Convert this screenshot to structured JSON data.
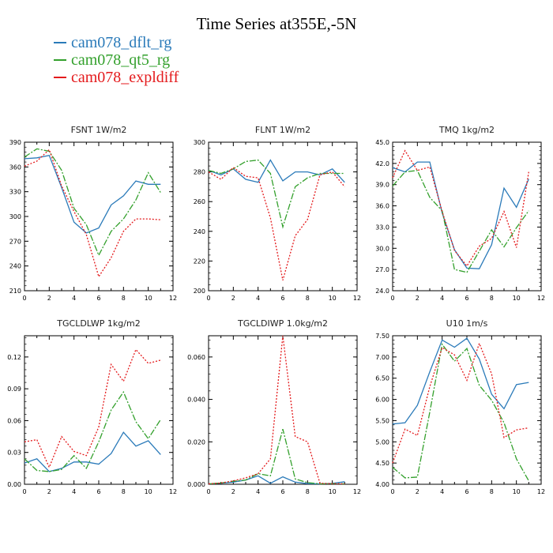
{
  "title": "Time Series at355E,-5N",
  "legend": [
    {
      "label": "cam078_dflt_rg",
      "color": "#2a7ab9"
    },
    {
      "label": "cam078_qt5_rg",
      "color": "#33a02c"
    },
    {
      "label": "cam078_expldiff",
      "color": "#e41a1c"
    }
  ],
  "chart_data": [
    {
      "type": "line",
      "title": "FSNT   1W/m2",
      "x": [
        0,
        1,
        2,
        3,
        4,
        5,
        6,
        7,
        8,
        9,
        10,
        11
      ],
      "xlim": [
        0,
        12
      ],
      "xticks": [
        "0",
        "2",
        "4",
        "6",
        "8",
        "10",
        "12"
      ],
      "ylim": [
        210,
        390
      ],
      "yticks": [
        "210",
        "240",
        "270",
        "300",
        "330",
        "360",
        "390"
      ],
      "series": [
        {
          "name": "cam078_dflt_rg",
          "values": [
            370,
            371,
            374,
            335,
            293,
            280,
            286,
            314,
            325,
            343,
            339,
            339
          ]
        },
        {
          "name": "cam078_qt5_rg",
          "values": [
            372,
            382,
            379,
            356,
            310,
            290,
            253,
            282,
            297,
            320,
            353,
            329
          ]
        },
        {
          "name": "cam078_expldiff",
          "values": [
            361,
            367,
            381,
            337,
            306,
            278,
            227,
            250,
            282,
            297,
            297,
            296
          ]
        }
      ]
    },
    {
      "type": "line",
      "title": "FLNT   1W/m2",
      "x": [
        0,
        1,
        2,
        3,
        4,
        5,
        6,
        7,
        8,
        9,
        10,
        11
      ],
      "xlim": [
        0,
        12
      ],
      "xticks": [
        "0",
        "2",
        "4",
        "6",
        "8",
        "10",
        "12"
      ],
      "ylim": [
        200,
        300
      ],
      "yticks": [
        "200",
        "220",
        "240",
        "260",
        "280",
        "300"
      ],
      "series": [
        {
          "name": "cam078_dflt_rg",
          "values": [
            281,
            278,
            282,
            275,
            273,
            288,
            274,
            280,
            280,
            278,
            282,
            273
          ]
        },
        {
          "name": "cam078_qt5_rg",
          "values": [
            281,
            279,
            282,
            287,
            288,
            279,
            243,
            270,
            276,
            279,
            279,
            279
          ]
        },
        {
          "name": "cam078_expldiff",
          "values": [
            280,
            275,
            283,
            277,
            276,
            249,
            207,
            237,
            248,
            278,
            280,
            270
          ]
        }
      ]
    },
    {
      "type": "line",
      "title": "TMQ   1kg/m2",
      "x": [
        0,
        1,
        2,
        3,
        4,
        5,
        6,
        7,
        8,
        9,
        10,
        11
      ],
      "xlim": [
        0,
        12
      ],
      "xticks": [
        "0",
        "2",
        "4",
        "6",
        "8",
        "10",
        "12"
      ],
      "ylim": [
        24.0,
        45.0
      ],
      "yticks": [
        "24.0",
        "27.0",
        "30.0",
        "33.0",
        "36.0",
        "39.0",
        "42.0",
        "45.0"
      ],
      "series": [
        {
          "name": "cam078_dflt_rg",
          "values": [
            41.4,
            40.8,
            42.2,
            42.2,
            35.0,
            29.8,
            27.2,
            27.1,
            30.5,
            38.5,
            35.8,
            39.8
          ]
        },
        {
          "name": "cam078_qt5_rg",
          "values": [
            38.8,
            40.8,
            41.0,
            37.2,
            35.3,
            27.0,
            26.6,
            29.6,
            32.6,
            30.2,
            32.9,
            35.3
          ]
        },
        {
          "name": "cam078_expldiff",
          "values": [
            40.0,
            43.8,
            41.0,
            41.5,
            35.2,
            29.7,
            27.5,
            30.3,
            31.4,
            35.2,
            30.1,
            40.8
          ]
        }
      ]
    },
    {
      "type": "line",
      "title": "TGCLDLWP   1kg/m2",
      "x": [
        0,
        1,
        2,
        3,
        4,
        5,
        6,
        7,
        8,
        9,
        10,
        11
      ],
      "xlim": [
        0,
        12
      ],
      "xticks": [
        "0",
        "2",
        "4",
        "6",
        "8",
        "10",
        "12"
      ],
      "ylim": [
        0.0,
        0.14
      ],
      "yticks": [
        "0.00",
        "0.03",
        "0.06",
        "0.09",
        "0.12"
      ],
      "series": [
        {
          "name": "cam078_dflt_rg",
          "values": [
            0.02,
            0.024,
            0.012,
            0.015,
            0.021,
            0.021,
            0.019,
            0.029,
            0.049,
            0.036,
            0.041,
            0.028
          ]
        },
        {
          "name": "cam078_qt5_rg",
          "values": [
            0.024,
            0.013,
            0.012,
            0.014,
            0.027,
            0.015,
            0.04,
            0.07,
            0.087,
            0.059,
            0.043,
            0.061
          ]
        },
        {
          "name": "cam078_expldiff",
          "values": [
            0.04,
            0.042,
            0.016,
            0.045,
            0.031,
            0.027,
            0.054,
            0.113,
            0.097,
            0.127,
            0.114,
            0.117
          ]
        }
      ]
    },
    {
      "type": "line",
      "title": "TGCLDIWP   1.0kg/m2",
      "x": [
        0,
        1,
        2,
        3,
        4,
        5,
        6,
        7,
        8,
        9,
        10,
        11
      ],
      "xlim": [
        0,
        12
      ],
      "xticks": [
        "0",
        "2",
        "4",
        "6",
        "8",
        "10",
        "12"
      ],
      "ylim": [
        0.0,
        0.07
      ],
      "yticks": [
        "0.000",
        "0.020",
        "0.040",
        "0.060"
      ],
      "series": [
        {
          "name": "cam078_dflt_rg",
          "values": [
            0.0002,
            0.0005,
            0.001,
            0.002,
            0.004,
            0.0005,
            0.0035,
            0.001,
            0.0003,
            0.0002,
            0.0004,
            0.0012
          ]
        },
        {
          "name": "cam078_qt5_rg",
          "values": [
            0.0002,
            0.0006,
            0.0014,
            0.002,
            0.005,
            0.004,
            0.026,
            0.0025,
            0.0008,
            0.0002,
            0.0003,
            0.0002
          ]
        },
        {
          "name": "cam078_expldiff",
          "values": [
            0.0002,
            0.0006,
            0.0016,
            0.003,
            0.005,
            0.012,
            0.07,
            0.0225,
            0.02,
            0.0005,
            0.0003,
            0.0002
          ]
        }
      ]
    },
    {
      "type": "line",
      "title": "U10   1m/s",
      "x": [
        0,
        1,
        2,
        3,
        4,
        5,
        6,
        7,
        8,
        9,
        10,
        11
      ],
      "xlim": [
        0,
        12
      ],
      "xticks": [
        "0",
        "2",
        "4",
        "6",
        "8",
        "10",
        "12"
      ],
      "ylim": [
        4.0,
        7.5
      ],
      "yticks": [
        "4.00",
        "4.50",
        "5.00",
        "5.50",
        "6.00",
        "6.50",
        "7.00",
        "7.50"
      ],
      "series": [
        {
          "name": "cam078_dflt_rg",
          "values": [
            5.42,
            5.45,
            5.86,
            6.65,
            7.4,
            7.23,
            7.44,
            6.95,
            6.12,
            5.78,
            6.35,
            6.4
          ]
        },
        {
          "name": "cam078_qt5_rg",
          "values": [
            4.4,
            4.15,
            4.17,
            5.7,
            7.3,
            6.9,
            7.2,
            6.33,
            5.98,
            5.45,
            4.6,
            4.08
          ]
        },
        {
          "name": "cam078_expldiff",
          "values": [
            4.5,
            5.3,
            5.15,
            6.3,
            7.22,
            7.05,
            6.45,
            7.32,
            6.6,
            5.1,
            5.28,
            5.33
          ]
        }
      ]
    }
  ]
}
